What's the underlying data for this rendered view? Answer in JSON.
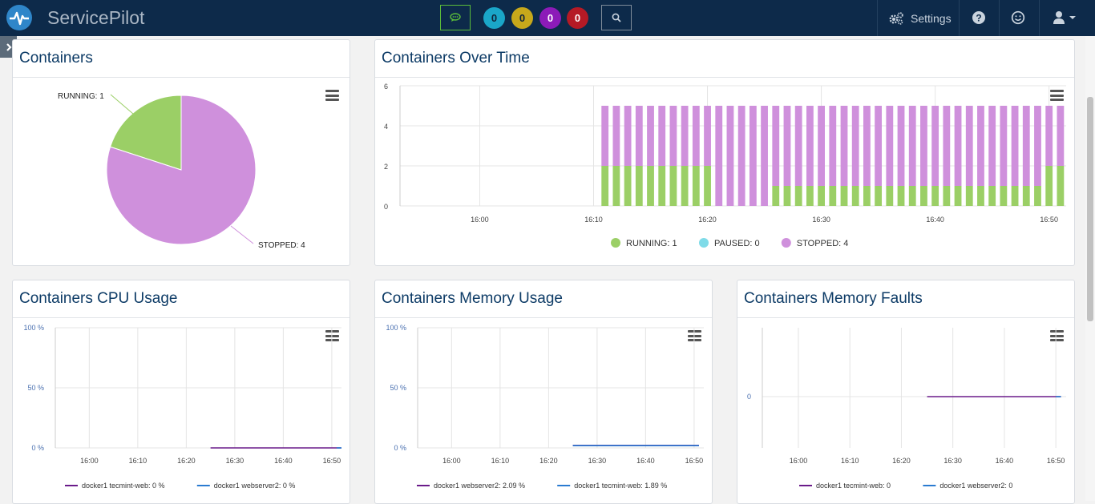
{
  "header": {
    "brand": "ServicePilot",
    "badges": [
      {
        "value": "0",
        "color": "#1aa6c8"
      },
      {
        "value": "0",
        "color": "#c7a81b"
      },
      {
        "value": "0",
        "color": "#8c1bb8"
      },
      {
        "value": "0",
        "color": "#b51a25"
      }
    ],
    "settings_label": "Settings",
    "icons": [
      "chat-icon",
      "search-icon",
      "gears-icon",
      "help-icon",
      "smiley-icon",
      "user-icon",
      "caret-down-icon"
    ]
  },
  "sidebar_toggle": {
    "icon": "chevron-right-icon"
  },
  "panels": {
    "containers": {
      "title": "Containers"
    },
    "over_time": {
      "title": "Containers Over Time"
    },
    "cpu": {
      "title": "Containers CPU Usage"
    },
    "memory": {
      "title": "Containers Memory Usage"
    },
    "faults": {
      "title": "Containers Memory Faults"
    }
  },
  "colors": {
    "running": "#9bcf66",
    "paused": "#7fdbe8",
    "stopped": "#cf90dc",
    "purple_line": "#6a1b8a",
    "blue_line": "#2a7bd1"
  },
  "chart_data": [
    {
      "type": "pie",
      "title": "Containers",
      "slices": [
        {
          "label": "RUNNING: 1",
          "value": 1,
          "color": "#9bcf66"
        },
        {
          "label": "STOPPED: 4",
          "value": 4,
          "color": "#cf90dc"
        }
      ]
    },
    {
      "type": "bar",
      "title": "Containers Over Time",
      "stacked": true,
      "ylim": [
        0,
        6
      ],
      "yticks": [
        "0",
        "2",
        "4",
        "6"
      ],
      "xticks": [
        "16:00",
        "16:10",
        "16:20",
        "16:30",
        "16:40",
        "16:50"
      ],
      "x_minutes_range": [
        953,
        1011.5
      ],
      "bars": [
        {
          "start": 971,
          "end": 1011,
          "step": 1,
          "running_rule": [
            {
              "from": 971,
              "to": 980,
              "running": 2,
              "stopped": 3
            },
            {
              "from": 981,
              "to": 985,
              "running": 0,
              "stopped": 5
            },
            {
              "from": 986,
              "to": 1009,
              "running": 1,
              "stopped": 4
            },
            {
              "from": 1010,
              "to": 1011,
              "running": 2,
              "stopped": 3
            }
          ]
        }
      ],
      "legend": [
        {
          "label": "RUNNING: 1",
          "color": "#9bcf66"
        },
        {
          "label": "PAUSED: 0",
          "color": "#7fdbe8"
        },
        {
          "label": "STOPPED: 4",
          "color": "#cf90dc"
        }
      ]
    },
    {
      "type": "line",
      "title": "Containers CPU Usage",
      "yticks": [
        "0 %",
        "50 %",
        "100 %"
      ],
      "ylim": [
        0,
        100
      ],
      "xticks": [
        "16:00",
        "16:10",
        "16:20",
        "16:30",
        "16:40",
        "16:50"
      ],
      "series": [
        {
          "name": "docker1 tecmint-web: 0 %",
          "color": "#6a1b8a",
          "x": [
            985,
            1012
          ],
          "y": [
            0,
            0
          ]
        },
        {
          "name": "docker1 webserver2: 0 %",
          "color": "#2a7bd1",
          "x": [
            1011,
            1012
          ],
          "y": [
            0,
            0
          ]
        }
      ]
    },
    {
      "type": "line",
      "title": "Containers Memory Usage",
      "yticks": [
        "0 %",
        "50 %",
        "100 %"
      ],
      "ylim": [
        0,
        100
      ],
      "xticks": [
        "16:00",
        "16:10",
        "16:20",
        "16:30",
        "16:40",
        "16:50"
      ],
      "series": [
        {
          "name": "docker1 webserver2: 2.09 %",
          "color": "#6a1b8a",
          "x": [
            985,
            1011
          ],
          "y": [
            2.09,
            2.09
          ]
        },
        {
          "name": "docker1 tecmint-web: 1.89 %",
          "color": "#2a7bd1",
          "x": [
            985,
            1011
          ],
          "y": [
            1.89,
            1.89
          ]
        }
      ]
    },
    {
      "type": "line",
      "title": "Containers Memory Faults",
      "yticks": [
        "0"
      ],
      "xticks": [
        "16:00",
        "16:10",
        "16:20",
        "16:30",
        "16:40",
        "16:50"
      ],
      "series": [
        {
          "name": "docker1 tecmint-web: 0",
          "color": "#6a1b8a",
          "x": [
            985,
            1011
          ],
          "y": [
            0,
            0
          ]
        },
        {
          "name": "docker1 webserver2: 0",
          "color": "#2a7bd1",
          "x": [
            1010,
            1011
          ],
          "y": [
            0,
            0
          ]
        }
      ]
    }
  ]
}
